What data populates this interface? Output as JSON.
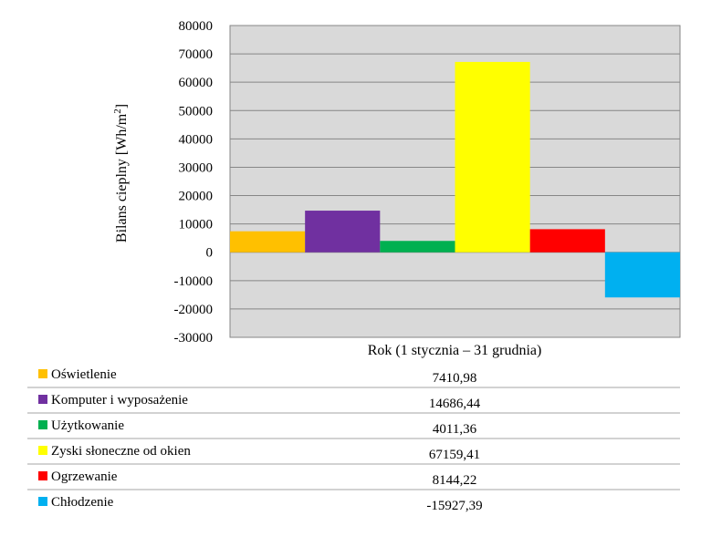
{
  "chart_data": {
    "type": "bar",
    "title": "",
    "ylabel": "Bilans cieplny [Wh/m",
    "ylabel_sup": "2",
    "ylabel_end": "]",
    "xlabel": "Rok  (1 stycznia – 31 grudnia)",
    "ylim": [
      -30000,
      80000
    ],
    "ytick_step": 10000,
    "yticks": [
      "80000",
      "70000",
      "60000",
      "50000",
      "40000",
      "30000",
      "20000",
      "10000",
      "0",
      "-10000",
      "-20000",
      "-30000"
    ],
    "grid": true,
    "series": [
      {
        "name": "Oświetlenie",
        "value": 7410.98,
        "label": "7410,98",
        "color": "#FFC000"
      },
      {
        "name": "Komputer i wyposażenie",
        "value": 14686.44,
        "label": "14686,44",
        "color": "#7030A0"
      },
      {
        "name": "Użytkowanie",
        "value": 4011.36,
        "label": "4011,36",
        "color": "#00B050"
      },
      {
        "name": "Zyski słoneczne od okien",
        "value": 67159.41,
        "label": "67159,41",
        "color": "#FFFF00"
      },
      {
        "name": "Ogrzewanie",
        "value": 8144.22,
        "label": "8144,22",
        "color": "#FF0000"
      },
      {
        "name": "Chłodzenie",
        "value": -15927.39,
        "label": "-15927,39",
        "color": "#00B0F0"
      }
    ]
  }
}
